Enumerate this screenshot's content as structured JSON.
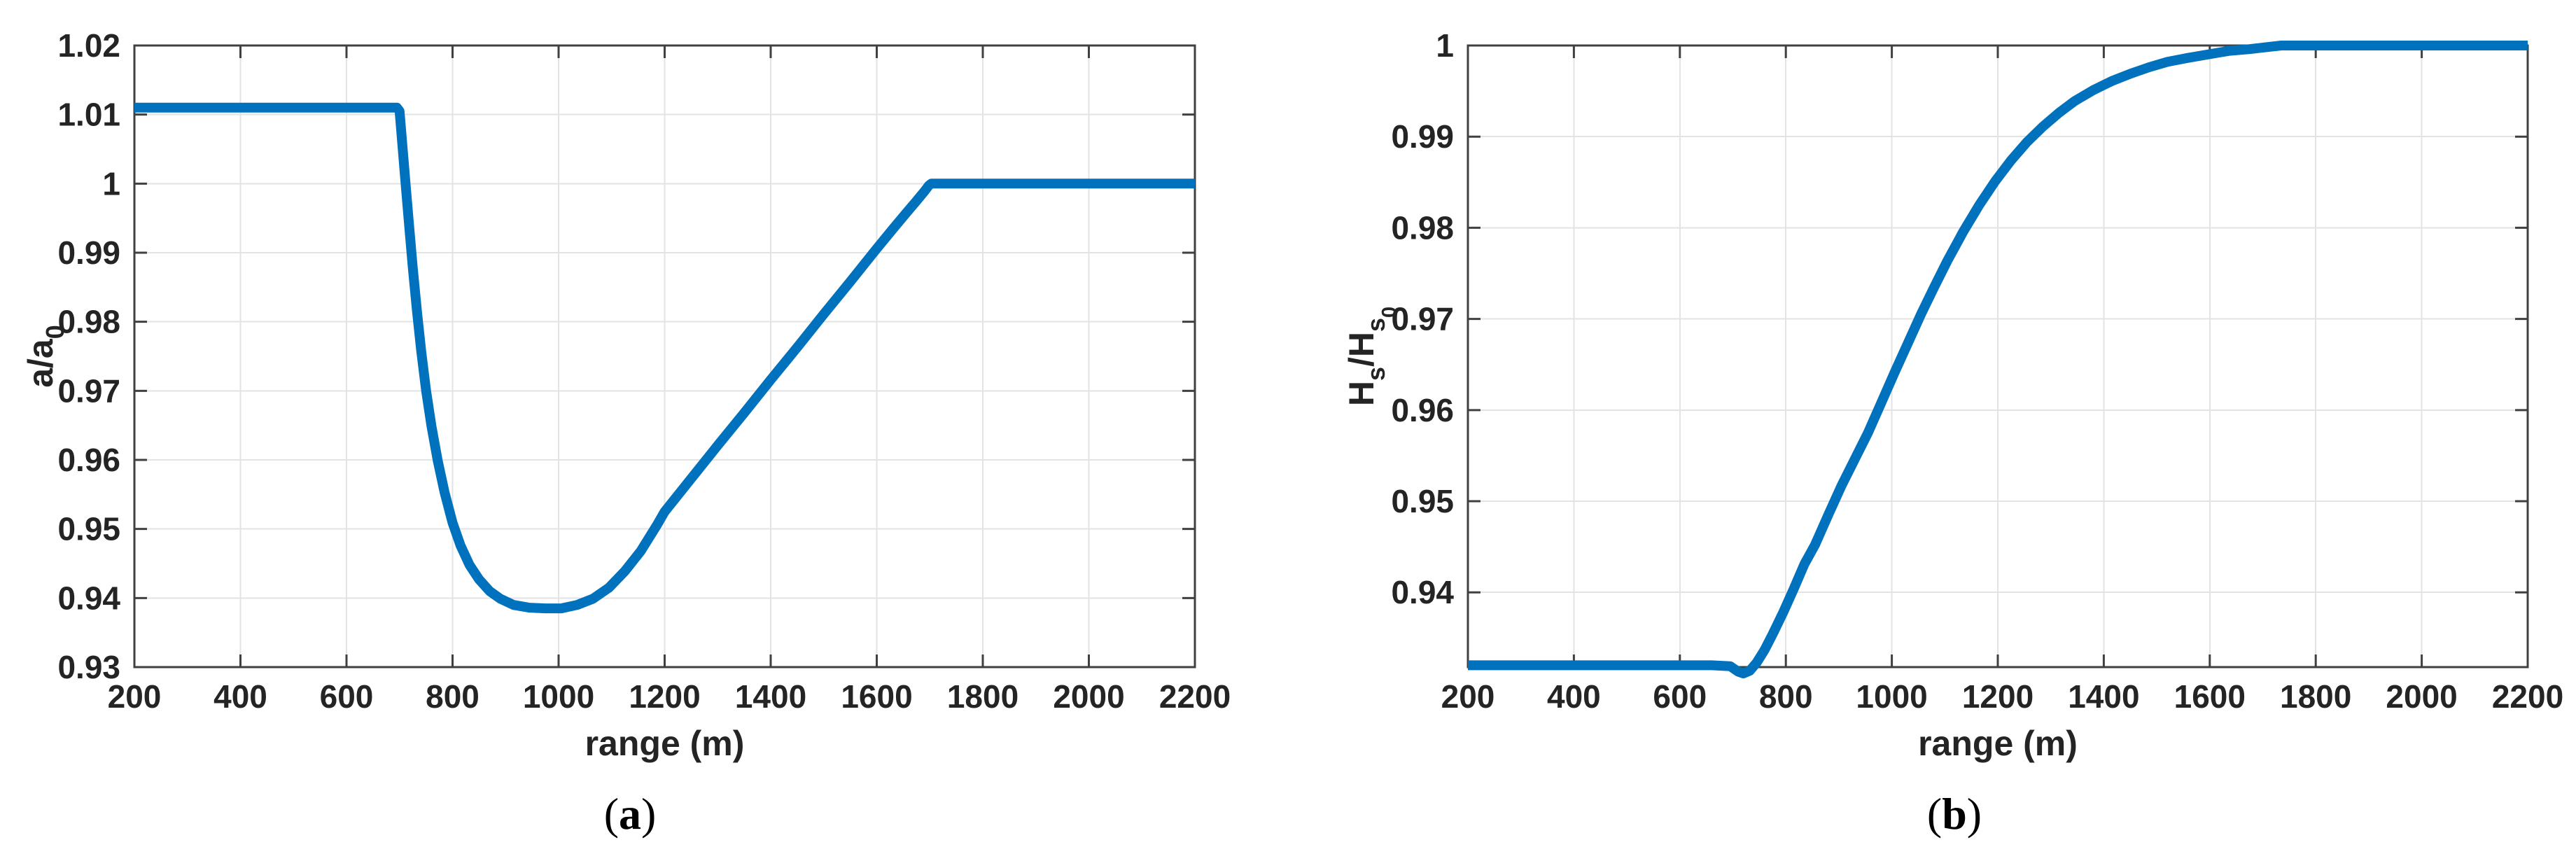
{
  "figure": {
    "background": "#ffffff"
  },
  "captions": {
    "a": {
      "open": "(",
      "label": "a",
      "close": ")"
    },
    "b": {
      "open": "(",
      "label": "b",
      "close": ")"
    }
  },
  "style": {
    "line_color": "#0072BD",
    "line_width": 14,
    "axis_color": "#404040",
    "grid_color": "#e3e3e3",
    "tick_label_color": "#242424",
    "axis_label_color": "#242424",
    "tick_font_size": 46,
    "label_font_size": 50,
    "tick_length": 18
  },
  "chart_data": [
    {
      "type": "line",
      "panel": "a",
      "xlabel": "range (m)",
      "ylabel_segments": [
        {
          "t": "a/a",
          "level": 0
        },
        {
          "t": "0",
          "level": 1
        }
      ],
      "xlim": [
        200,
        2200
      ],
      "ylim": [
        0.93,
        1.02
      ],
      "xticks": [
        200,
        400,
        600,
        800,
        1000,
        1200,
        1400,
        1600,
        1800,
        2000,
        2200
      ],
      "xtick_labels": [
        "200",
        "400",
        "600",
        "800",
        "1000",
        "1200",
        "1400",
        "1600",
        "1800",
        "2000",
        "2200"
      ],
      "yticks": [
        0.93,
        0.94,
        0.95,
        0.96,
        0.97,
        0.98,
        0.99,
        1.0,
        1.01,
        1.02
      ],
      "ytick_labels": [
        "0.93",
        "0.94",
        "0.95",
        "0.96",
        "0.97",
        "0.98",
        "0.99",
        "1",
        "1.01",
        "1.02"
      ],
      "grid": true,
      "legend": null,
      "series": [
        {
          "name": "a/a0",
          "points": [
            [
              200,
              1.011
            ],
            [
              300,
              1.011
            ],
            [
              400,
              1.011
            ],
            [
              500,
              1.011
            ],
            [
              600,
              1.011
            ],
            [
              660,
              1.011
            ],
            [
              695,
              1.011
            ],
            [
              700,
              1.0105
            ],
            [
              706,
              1.005
            ],
            [
              712,
              0.9995
            ],
            [
              718,
              0.994
            ],
            [
              725,
              0.9878
            ],
            [
              733,
              0.9815
            ],
            [
              741,
              0.9757
            ],
            [
              750,
              0.9701
            ],
            [
              760,
              0.965
            ],
            [
              772,
              0.9599
            ],
            [
              785,
              0.9553
            ],
            [
              800,
              0.9509
            ],
            [
              815,
              0.9476
            ],
            [
              832,
              0.9448
            ],
            [
              850,
              0.9427
            ],
            [
              870,
              0.941
            ],
            [
              890,
              0.9399
            ],
            [
              915,
              0.939
            ],
            [
              945,
              0.9386
            ],
            [
              975,
              0.9385
            ],
            [
              1005,
              0.9385
            ],
            [
              1035,
              0.939
            ],
            [
              1065,
              0.9399
            ],
            [
              1095,
              0.9415
            ],
            [
              1125,
              0.9439
            ],
            [
              1155,
              0.9468
            ],
            [
              1185,
              0.9505
            ],
            [
              1200,
              0.9525
            ],
            [
              1250,
              0.9573
            ],
            [
              1300,
              0.9621
            ],
            [
              1350,
              0.9668
            ],
            [
              1400,
              0.9716
            ],
            [
              1450,
              0.9763
            ],
            [
              1500,
              0.9811
            ],
            [
              1550,
              0.9858
            ],
            [
              1600,
              0.9906
            ],
            [
              1630,
              0.9934
            ],
            [
              1655,
              0.9957
            ],
            [
              1675,
              0.9975
            ],
            [
              1690,
              0.9989
            ],
            [
              1698,
              0.9997
            ],
            [
              1703,
              1.0
            ],
            [
              1750,
              1.0
            ],
            [
              1850,
              1.0
            ],
            [
              2000,
              1.0
            ],
            [
              2200,
              1.0
            ]
          ]
        }
      ]
    },
    {
      "type": "line",
      "panel": "b",
      "xlabel": "range (m)",
      "ylabel_segments": [
        {
          "t": "H",
          "level": 0
        },
        {
          "t": "s",
          "level": 1
        },
        {
          "t": "/H",
          "level": 0
        },
        {
          "t": "s",
          "level": 1
        },
        {
          "t": "0",
          "level": 2
        }
      ],
      "xlim": [
        200,
        2200
      ],
      "ylim": [
        0.9318,
        1.0
      ],
      "xticks": [
        200,
        400,
        600,
        800,
        1000,
        1200,
        1400,
        1600,
        1800,
        2000,
        2200
      ],
      "xtick_labels": [
        "200",
        "400",
        "600",
        "800",
        "1000",
        "1200",
        "1400",
        "1600",
        "1800",
        "2000",
        "2200"
      ],
      "yticks": [
        0.94,
        0.95,
        0.96,
        0.97,
        0.98,
        0.99,
        1.0
      ],
      "ytick_labels": [
        "0.94",
        "0.95",
        "0.96",
        "0.97",
        "0.98",
        "0.99",
        "1"
      ],
      "grid": true,
      "legend": null,
      "series": [
        {
          "name": "Hs/Hs0",
          "points": [
            [
              200,
              0.932
            ],
            [
              300,
              0.932
            ],
            [
              400,
              0.932
            ],
            [
              500,
              0.932
            ],
            [
              600,
              0.932
            ],
            [
              660,
              0.932
            ],
            [
              695,
              0.9319
            ],
            [
              710,
              0.9313
            ],
            [
              720,
              0.9311
            ],
            [
              732,
              0.9314
            ],
            [
              745,
              0.9323
            ],
            [
              760,
              0.9337
            ],
            [
              775,
              0.9354
            ],
            [
              795,
              0.9378
            ],
            [
              815,
              0.9404
            ],
            [
              835,
              0.9431
            ],
            [
              855,
              0.9452
            ],
            [
              880,
              0.9485
            ],
            [
              905,
              0.9517
            ],
            [
              930,
              0.9546
            ],
            [
              955,
              0.9575
            ],
            [
              980,
              0.9608
            ],
            [
              1005,
              0.9641
            ],
            [
              1030,
              0.9673
            ],
            [
              1055,
              0.9705
            ],
            [
              1080,
              0.9735
            ],
            [
              1105,
              0.9764
            ],
            [
              1135,
              0.9796
            ],
            [
              1165,
              0.9825
            ],
            [
              1195,
              0.9851
            ],
            [
              1225,
              0.9874
            ],
            [
              1255,
              0.9894
            ],
            [
              1285,
              0.9911
            ],
            [
              1315,
              0.9926
            ],
            [
              1345,
              0.9939
            ],
            [
              1380,
              0.9951
            ],
            [
              1415,
              0.9961
            ],
            [
              1450,
              0.9969
            ],
            [
              1485,
              0.9976
            ],
            [
              1520,
              0.9982
            ],
            [
              1555,
              0.9986
            ],
            [
              1595,
              0.999
            ],
            [
              1635,
              0.9994
            ],
            [
              1675,
              0.9996
            ],
            [
              1705,
              0.9998
            ],
            [
              1735,
              1.0
            ],
            [
              1800,
              1.0
            ],
            [
              1900,
              1.0
            ],
            [
              2050,
              1.0
            ],
            [
              2200,
              1.0
            ]
          ]
        }
      ]
    }
  ],
  "layout_note": ""
}
